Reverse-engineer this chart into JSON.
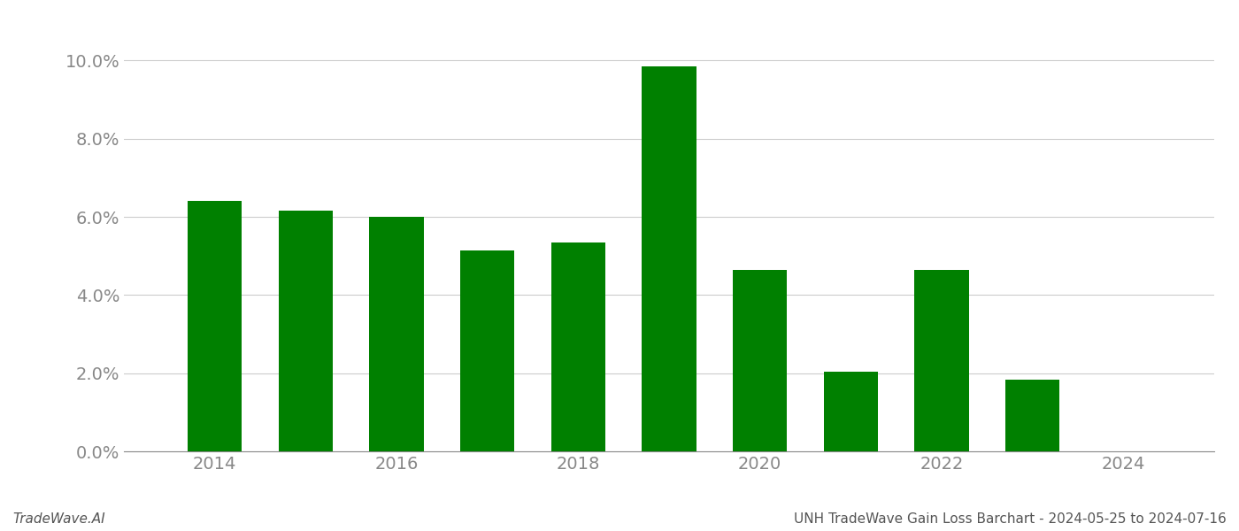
{
  "years": [
    2014,
    2015,
    2016,
    2017,
    2018,
    2019,
    2020,
    2021,
    2022,
    2023
  ],
  "values": [
    0.0641,
    0.0615,
    0.0601,
    0.0514,
    0.0535,
    0.0986,
    0.0464,
    0.0203,
    0.0465,
    0.0183
  ],
  "bar_color": "#008000",
  "background_color": "#ffffff",
  "grid_color": "#cccccc",
  "title": "UNH TradeWave Gain Loss Barchart - 2024-05-25 to 2024-07-16",
  "watermark": "TradeWave.AI",
  "ylim": [
    0,
    0.106
  ],
  "yticks": [
    0.0,
    0.02,
    0.04,
    0.06,
    0.08,
    0.1
  ],
  "xticks": [
    2014,
    2016,
    2018,
    2020,
    2022,
    2024
  ],
  "bar_width": 0.6,
  "title_fontsize": 11,
  "watermark_fontsize": 11,
  "tick_fontsize": 14,
  "axis_label_color": "#888888",
  "xlim_left": 2013.0,
  "xlim_right": 2025.0
}
